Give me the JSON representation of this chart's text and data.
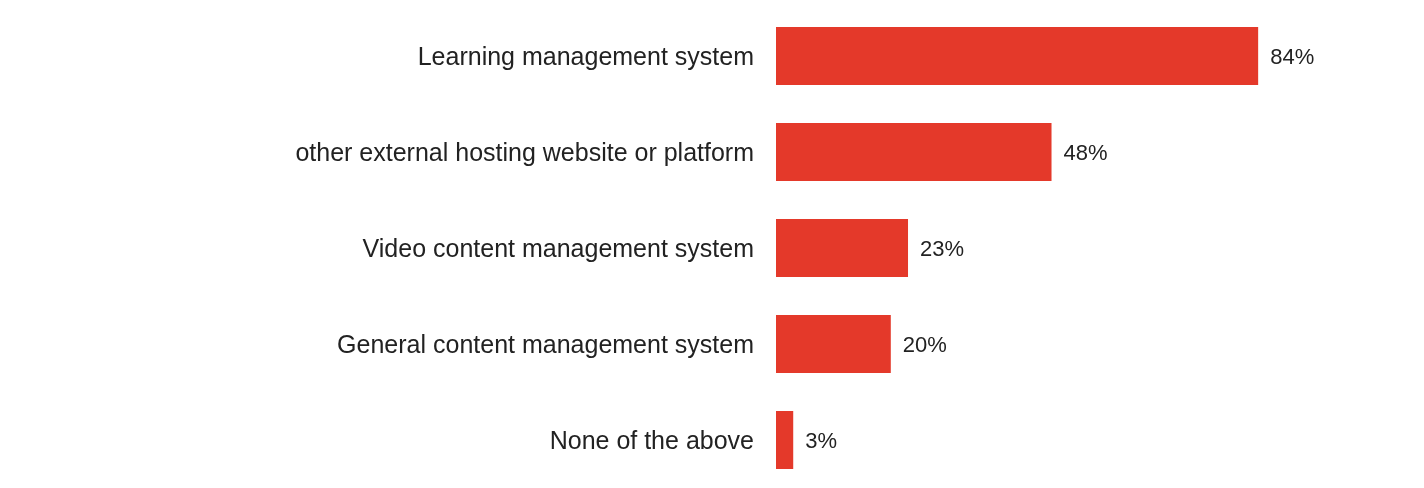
{
  "chart_data": {
    "type": "bar",
    "orientation": "horizontal",
    "categories": [
      "Learning management system",
      "other external hosting website or platform",
      "Video content management system",
      "General content management system",
      "None of the above"
    ],
    "values": [
      84,
      48,
      23,
      20,
      3
    ],
    "value_labels": [
      "84%",
      "48%",
      "23%",
      "20%",
      "3%"
    ],
    "color": "#e4392a"
  }
}
